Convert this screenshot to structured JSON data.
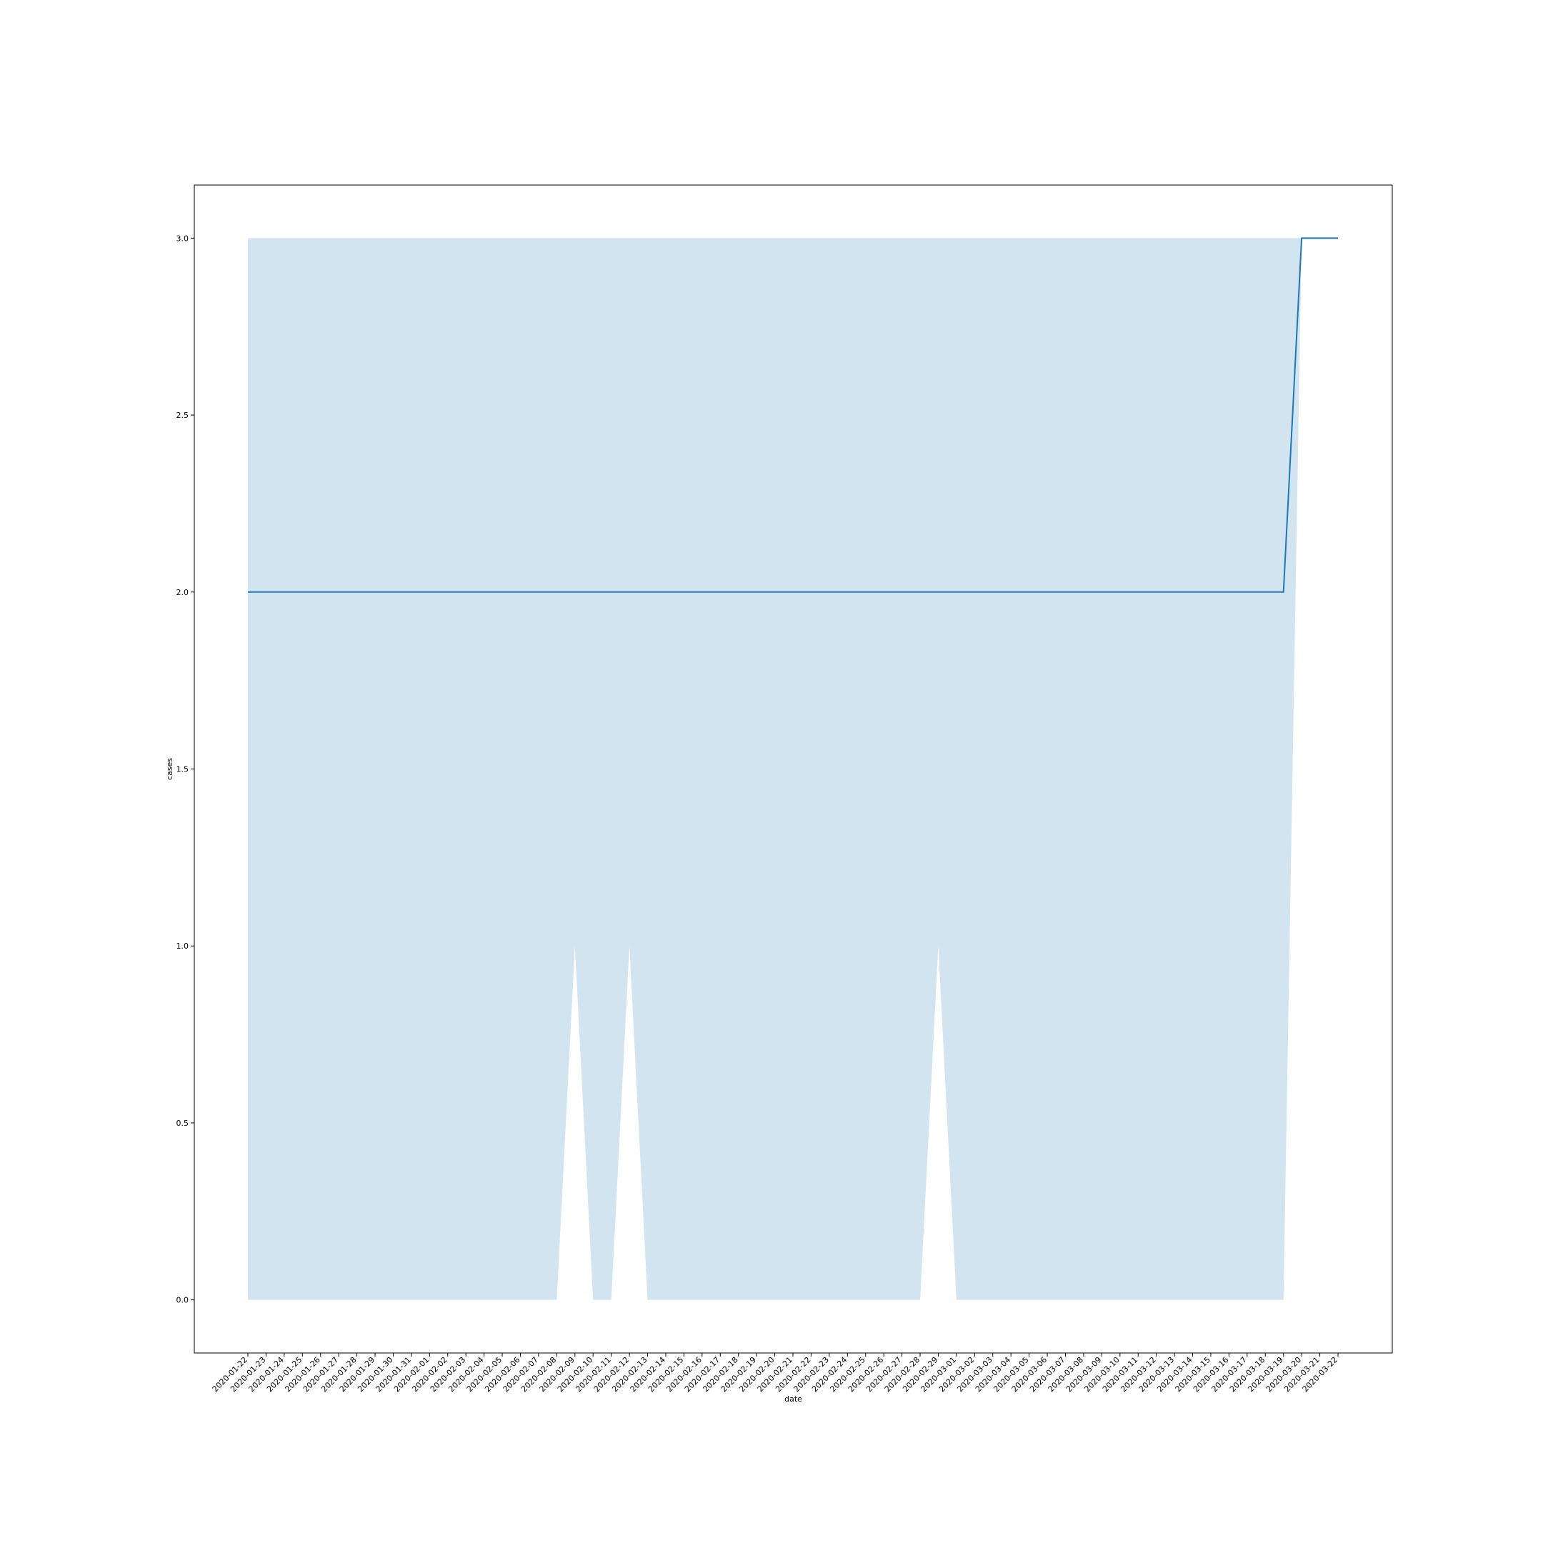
{
  "chart_data": {
    "type": "line",
    "title": "",
    "xlabel": "date",
    "ylabel": "cases",
    "ylim": [
      -0.15,
      3.15
    ],
    "yticks": [
      "0.0",
      "0.5",
      "1.0",
      "1.5",
      "2.0",
      "2.5",
      "3.0"
    ],
    "grid": false,
    "x": [
      "2020-01-22",
      "2020-01-23",
      "2020-01-24",
      "2020-01-25",
      "2020-01-26",
      "2020-01-27",
      "2020-01-28",
      "2020-01-29",
      "2020-01-30",
      "2020-01-31",
      "2020-02-01",
      "2020-02-02",
      "2020-02-03",
      "2020-02-04",
      "2020-02-05",
      "2020-02-06",
      "2020-02-07",
      "2020-02-08",
      "2020-02-09",
      "2020-02-10",
      "2020-02-11",
      "2020-02-12",
      "2020-02-13",
      "2020-02-14",
      "2020-02-15",
      "2020-02-16",
      "2020-02-17",
      "2020-02-18",
      "2020-02-19",
      "2020-02-20",
      "2020-02-21",
      "2020-02-22",
      "2020-02-23",
      "2020-02-24",
      "2020-02-25",
      "2020-02-26",
      "2020-02-27",
      "2020-02-28",
      "2020-02-29",
      "2020-03-01",
      "2020-03-02",
      "2020-03-03",
      "2020-03-04",
      "2020-03-05",
      "2020-03-06",
      "2020-03-07",
      "2020-03-08",
      "2020-03-09",
      "2020-03-10",
      "2020-03-11",
      "2020-03-12",
      "2020-03-13",
      "2020-03-14",
      "2020-03-15",
      "2020-03-16",
      "2020-03-17",
      "2020-03-18",
      "2020-03-19",
      "2020-03-20",
      "2020-03-21",
      "2020-03-22"
    ],
    "series": [
      {
        "values": [
          2,
          2,
          2,
          2,
          2,
          2,
          2,
          2,
          2,
          2,
          2,
          2,
          2,
          2,
          2,
          2,
          2,
          2,
          2,
          2,
          2,
          2,
          2,
          2,
          2,
          2,
          2,
          2,
          2,
          2,
          2,
          2,
          2,
          2,
          2,
          2,
          2,
          2,
          2,
          2,
          2,
          2,
          2,
          2,
          2,
          2,
          2,
          2,
          2,
          2,
          2,
          2,
          2,
          2,
          2,
          2,
          2,
          2,
          3,
          3,
          3
        ],
        "ci_lower": [
          0,
          0,
          0,
          0,
          0,
          0,
          0,
          0,
          0,
          0,
          0,
          0,
          0,
          0,
          0,
          0,
          0,
          0,
          1,
          0,
          0,
          1,
          0,
          0,
          0,
          0,
          0,
          0,
          0,
          0,
          0,
          0,
          0,
          0,
          0,
          0,
          0,
          0,
          1,
          0,
          0,
          0,
          0,
          0,
          0,
          0,
          0,
          0,
          0,
          0,
          0,
          0,
          0,
          0,
          0,
          0,
          0,
          0,
          3,
          3,
          3
        ],
        "ci_upper": [
          3,
          3,
          3,
          3,
          3,
          3,
          3,
          3,
          3,
          3,
          3,
          3,
          3,
          3,
          3,
          3,
          3,
          3,
          3,
          3,
          3,
          3,
          3,
          3,
          3,
          3,
          3,
          3,
          3,
          3,
          3,
          3,
          3,
          3,
          3,
          3,
          3,
          3,
          3,
          3,
          3,
          3,
          3,
          3,
          3,
          3,
          3,
          3,
          3,
          3,
          3,
          3,
          3,
          3,
          3,
          3,
          3,
          3,
          3,
          3,
          3
        ],
        "color": "#1f77b4",
        "band_color": "#1f77b4"
      }
    ]
  }
}
